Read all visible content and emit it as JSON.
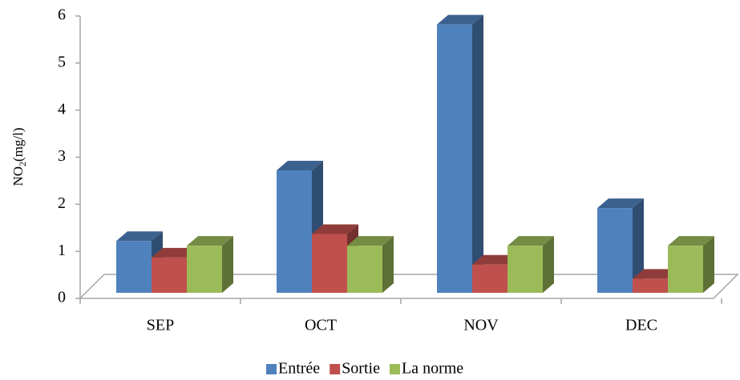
{
  "chart_data": {
    "type": "bar3d",
    "y_label": {
      "main": "NO",
      "sub": "2",
      "unit": "(mg/l)"
    },
    "categories": [
      "SEP",
      "OCT",
      "NOV",
      "DEC"
    ],
    "series": [
      {
        "name": "Entrée",
        "color": "#4f81bd",
        "values": [
          1.1,
          2.6,
          5.7,
          1.8
        ]
      },
      {
        "name": "Sortie",
        "color": "#c0504d",
        "values": [
          0.75,
          1.25,
          0.6,
          0.3
        ]
      },
      {
        "name": "La norme",
        "color": "#9bbb59",
        "values": [
          1.0,
          1.0,
          1.0,
          1.0
        ]
      }
    ],
    "ylim": [
      0,
      6
    ],
    "yticks": [
      0,
      1,
      2,
      3,
      4,
      5,
      6
    ],
    "legend": "bottom"
  }
}
